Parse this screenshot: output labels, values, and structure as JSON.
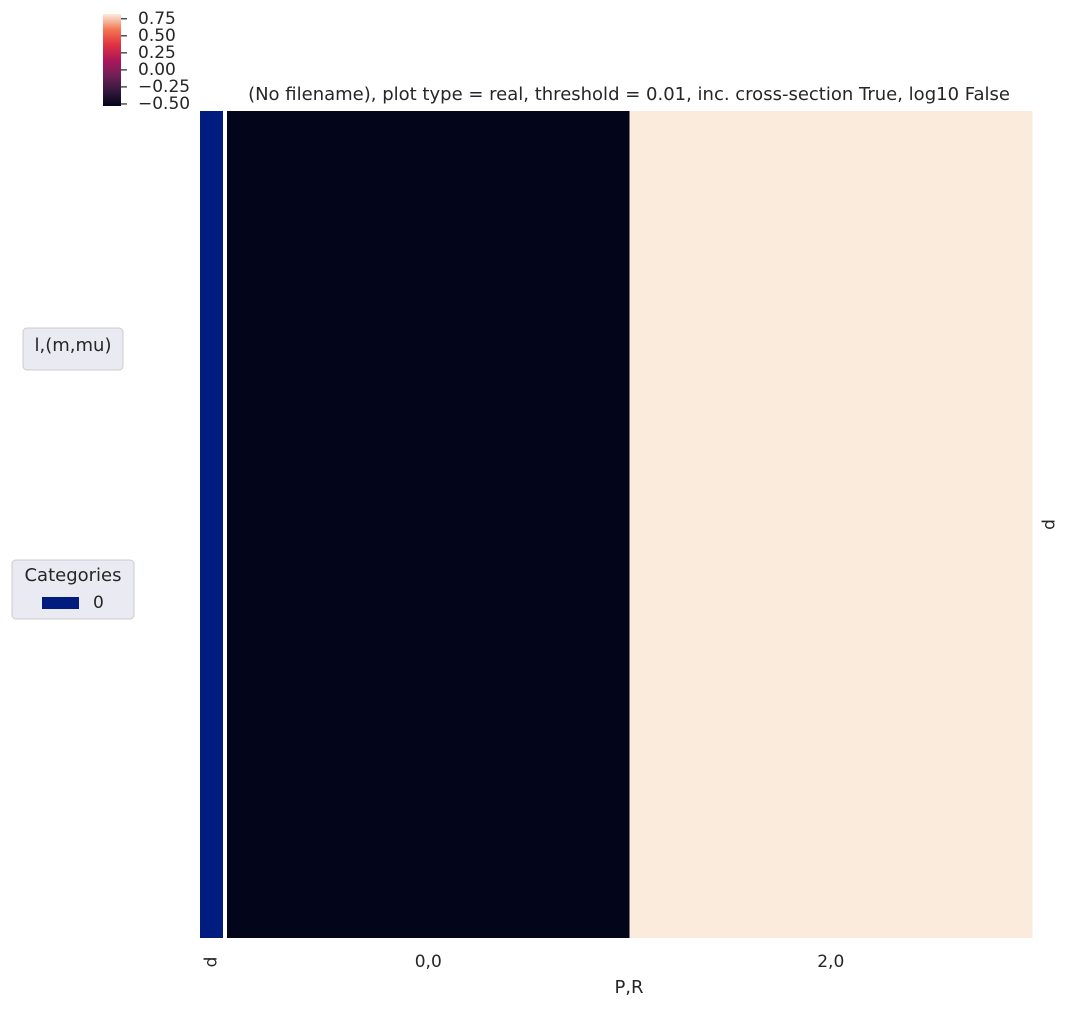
{
  "chart_data": {
    "type": "heatmap",
    "title": "(No filename), plot type = real, threshold = 0.01, inc. cross-section True, log10 False",
    "xlabel": "P,R",
    "categories": [
      "0,0",
      "2,0"
    ],
    "rows": [
      "p"
    ],
    "values": [
      [
        -0.53,
        0.82
      ]
    ],
    "colormap": "rocket",
    "clim": [
      -0.53,
      0.82
    ],
    "cticks": [
      {
        "value": -0.5,
        "label": "−0.50"
      },
      {
        "value": -0.25,
        "label": "−0.25"
      },
      {
        "value": 0,
        "label": "0.00"
      },
      {
        "value": 0.25,
        "label": "0.25"
      },
      {
        "value": 0.5,
        "label": "0.50"
      },
      {
        "value": 0.75,
        "label": "0.75"
      }
    ],
    "row_colors": {
      "label": "p",
      "categories": [
        "0"
      ],
      "colors": [
        "#001c7f"
      ],
      "assignment": [
        "0"
      ]
    },
    "legends": [
      {
        "title": "l,(m,mu)"
      },
      {
        "title": "Categories",
        "entries": [
          "0"
        ]
      }
    ]
  }
}
